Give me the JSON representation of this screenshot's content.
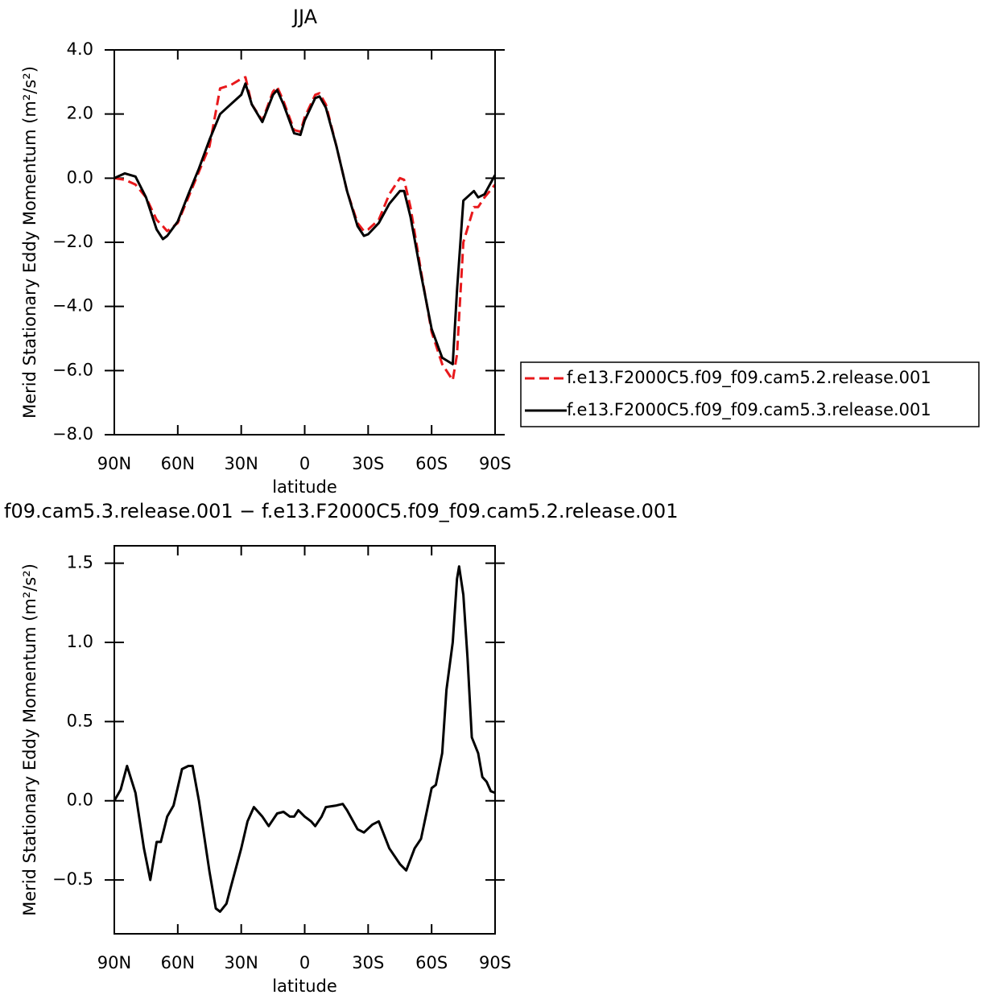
{
  "chart_data": [
    {
      "type": "line",
      "title": "JJA",
      "xlabel": "latitude",
      "ylabel": "Merid Stationary Eddy Momentum (m²/s²)",
      "xlim": [
        90,
        -90
      ],
      "xticks": [
        {
          "value": 90,
          "label": "90N"
        },
        {
          "value": 60,
          "label": "60N"
        },
        {
          "value": 30,
          "label": "30N"
        },
        0,
        {
          "value": -30,
          "label": "30S"
        },
        {
          "value": -60,
          "label": "60S"
        },
        {
          "value": -90,
          "label": "90S"
        }
      ],
      "ylim": [
        -8,
        4
      ],
      "yticks": [
        {
          "value": 4,
          "label": "4.0"
        },
        {
          "value": 2,
          "label": "2.0"
        },
        {
          "value": 0,
          "label": "0.0"
        },
        {
          "value": -2,
          "label": "−2.0"
        },
        {
          "value": -4,
          "label": "−4.0"
        },
        {
          "value": -6,
          "label": "−6.0"
        },
        {
          "value": -8,
          "label": "−8.0"
        }
      ],
      "legend": "right",
      "x": [
        90,
        85,
        80,
        75,
        70,
        67,
        65,
        60,
        55,
        50,
        45,
        40,
        35,
        30,
        28,
        25,
        20,
        15,
        13,
        10,
        5,
        2,
        0,
        -5,
        -7,
        -10,
        -15,
        -20,
        -25,
        -28,
        -30,
        -35,
        -40,
        -45,
        -47,
        -50,
        -55,
        -60,
        -65,
        -70,
        -72,
        -75,
        -80,
        -82,
        -85,
        -90
      ],
      "series": [
        {
          "name": "f.e13.F2000C5.f09_f09.cam5.2.release.001",
          "color": "#e8191c",
          "dash": true,
          "values": [
            0,
            -0.05,
            -0.2,
            -0.6,
            -1.3,
            -1.5,
            -1.65,
            -1.4,
            -0.6,
            0.2,
            1.0,
            2.8,
            2.9,
            3.1,
            3.15,
            2.3,
            1.8,
            2.7,
            2.85,
            2.4,
            1.5,
            1.45,
            1.9,
            2.6,
            2.65,
            2.3,
            1.0,
            -0.4,
            -1.4,
            -1.65,
            -1.6,
            -1.3,
            -0.5,
            0.0,
            -0.05,
            -0.9,
            -2.9,
            -4.8,
            -5.8,
            -6.3,
            -5.5,
            -2.0,
            -0.9,
            -0.9,
            -0.6,
            -0.2
          ]
        },
        {
          "name": "f.e13.F2000C5.f09_f09.cam5.3.release.001",
          "color": "#000000",
          "dash": false,
          "values": [
            0,
            0.15,
            0.05,
            -0.6,
            -1.6,
            -1.9,
            -1.8,
            -1.35,
            -0.5,
            0.3,
            1.2,
            2.0,
            2.3,
            2.6,
            2.95,
            2.3,
            1.75,
            2.6,
            2.75,
            2.3,
            1.4,
            1.35,
            1.8,
            2.5,
            2.55,
            2.2,
            1.0,
            -0.4,
            -1.5,
            -1.8,
            -1.75,
            -1.4,
            -0.8,
            -0.4,
            -0.4,
            -1.2,
            -3.0,
            -4.7,
            -5.6,
            -5.8,
            -3.5,
            -0.7,
            -0.4,
            -0.6,
            -0.5,
            0.1
          ]
        }
      ]
    },
    {
      "type": "line",
      "title": "f09.cam5.3.release.001 − f.e13.F2000C5.f09_f09.cam5.2.release.001",
      "xlabel": "latitude",
      "ylabel": "Merid Stationary Eddy Momentum (m²/s²)",
      "xlim": [
        90,
        -90
      ],
      "xticks": [
        {
          "value": 90,
          "label": "90N"
        },
        {
          "value": 60,
          "label": "60N"
        },
        {
          "value": 30,
          "label": "30N"
        },
        0,
        {
          "value": -30,
          "label": "30S"
        },
        {
          "value": -60,
          "label": "60S"
        },
        {
          "value": -90,
          "label": "90S"
        }
      ],
      "ylim": [
        -0.84,
        1.61
      ],
      "yticks": [
        1.5,
        {
          "value": 1,
          "label": "1.0"
        },
        0.5,
        {
          "value": 0,
          "label": "0.0"
        },
        {
          "value": -0.5,
          "label": "−0.5"
        }
      ],
      "x": [
        90,
        87,
        84,
        80,
        76,
        73,
        70,
        68,
        65,
        62,
        58,
        55,
        53,
        50,
        45,
        42,
        40,
        37,
        35,
        30,
        27,
        24,
        20,
        17,
        13,
        10,
        7,
        5,
        3,
        0,
        -3,
        -5,
        -8,
        -10,
        -15,
        -18,
        -20,
        -25,
        -28,
        -32,
        -35,
        -40,
        -45,
        -48,
        -52,
        -55,
        -58,
        -60,
        -62,
        -65,
        -67,
        -70,
        -72,
        -73,
        -75,
        -77,
        -79,
        -82,
        -84,
        -86,
        -88,
        -90
      ],
      "series": [
        {
          "color": "#000000",
          "dash": false,
          "values": [
            0,
            0.07,
            0.22,
            0.05,
            -0.3,
            -0.5,
            -0.26,
            -0.26,
            -0.1,
            -0.03,
            0.2,
            0.22,
            0.22,
            0.0,
            -0.45,
            -0.68,
            -0.7,
            -0.65,
            -0.55,
            -0.3,
            -0.13,
            -0.04,
            -0.1,
            -0.16,
            -0.08,
            -0.07,
            -0.1,
            -0.1,
            -0.06,
            -0.1,
            -0.13,
            -0.16,
            -0.1,
            -0.04,
            -0.03,
            -0.02,
            -0.06,
            -0.18,
            -0.2,
            -0.15,
            -0.13,
            -0.3,
            -0.4,
            -0.44,
            -0.3,
            -0.24,
            -0.05,
            0.08,
            0.1,
            0.3,
            0.7,
            1.0,
            1.4,
            1.48,
            1.3,
            0.9,
            0.4,
            0.3,
            0.15,
            0.12,
            0.06,
            0.05
          ]
        }
      ]
    }
  ]
}
